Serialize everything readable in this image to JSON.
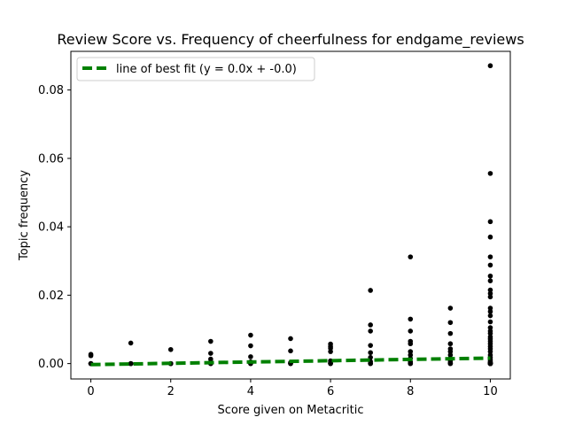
{
  "chart_data": {
    "type": "scatter",
    "title": "Review Score vs. Frequency of cheerfulness for endgame_reviews",
    "xlabel": "Score given on Metacritic",
    "ylabel": "Topic frequency",
    "xlim": [
      -0.5,
      10.5
    ],
    "ylim": [
      -0.0045,
      0.0913
    ],
    "xticks": [
      0,
      2,
      4,
      6,
      8,
      10
    ],
    "xtick_labels": [
      "0",
      "2",
      "4",
      "6",
      "8",
      "10"
    ],
    "yticks": [
      0.0,
      0.02,
      0.04,
      0.06,
      0.08
    ],
    "ytick_labels": [
      "0.00",
      "0.02",
      "0.04",
      "0.06",
      "0.08"
    ],
    "grid": false,
    "legend_position": "top-left",
    "colors": {
      "points": "#000000",
      "fit_line": "#008000"
    },
    "series": [
      {
        "kind": "points",
        "x": [
          0,
          0,
          0,
          0,
          0,
          1,
          1,
          1,
          1,
          2,
          2,
          2,
          2,
          3,
          3,
          3,
          3,
          3,
          3,
          4,
          4,
          4,
          4,
          4,
          4,
          5,
          5,
          5,
          5,
          5,
          6,
          6,
          6,
          6,
          6,
          6,
          6,
          6,
          7,
          7,
          7,
          7,
          7,
          7,
          7,
          7,
          7,
          8,
          8,
          8,
          8,
          8,
          8,
          8,
          8,
          8,
          8,
          8,
          8,
          9,
          9,
          9,
          9,
          9,
          9,
          9,
          9,
          9,
          9,
          9,
          9,
          10,
          10,
          10,
          10,
          10,
          10,
          10,
          10,
          10,
          10,
          10,
          10,
          10,
          10,
          10,
          10,
          10,
          10,
          10,
          10,
          10,
          10,
          10,
          10,
          10,
          10,
          10,
          10,
          10,
          10,
          10,
          10,
          10,
          10,
          10,
          10,
          10,
          10,
          10
        ],
        "y": [
          0.0027,
          0.0023,
          0.0,
          0.0,
          0.0,
          0.006,
          0.0,
          0.0,
          0.0,
          0.0041,
          0.0,
          0.0,
          0.0,
          0.0065,
          0.003,
          0.0013,
          0.0005,
          0.0,
          0.0,
          0.0083,
          0.0052,
          0.002,
          0.0005,
          0.0,
          0.0,
          0.0073,
          0.0037,
          0.0003,
          0.0,
          0.0,
          0.0057,
          0.005,
          0.0045,
          0.0035,
          0.0008,
          0.0003,
          0.0,
          0.0,
          0.0214,
          0.0113,
          0.0095,
          0.0053,
          0.0032,
          0.0018,
          0.0006,
          0.0,
          0.0,
          0.0312,
          0.013,
          0.0095,
          0.0065,
          0.0058,
          0.0035,
          0.0025,
          0.0015,
          0.0006,
          0.0002,
          0.0,
          0.0,
          0.0162,
          0.012,
          0.0088,
          0.0058,
          0.0043,
          0.0035,
          0.0025,
          0.0015,
          0.0008,
          0.0003,
          0.0,
          0.0,
          0.0871,
          0.0556,
          0.0415,
          0.037,
          0.0312,
          0.0288,
          0.0256,
          0.0242,
          0.0215,
          0.0205,
          0.0195,
          0.0162,
          0.0152,
          0.014,
          0.0122,
          0.0105,
          0.0095,
          0.0088,
          0.0078,
          0.0072,
          0.0065,
          0.0058,
          0.005,
          0.0043,
          0.0035,
          0.0025,
          0.0018,
          0.0012,
          0.0007,
          0.0004,
          0.0002,
          0.0,
          0.0,
          0.0,
          0.0,
          0.0,
          0.0,
          0.0,
          0.0
        ]
      },
      {
        "kind": "fit_line",
        "name": "line of best fit (y = 0.0x + -0.0)",
        "x": [
          0,
          10
        ],
        "y": [
          -0.0003,
          0.0016
        ]
      }
    ]
  }
}
